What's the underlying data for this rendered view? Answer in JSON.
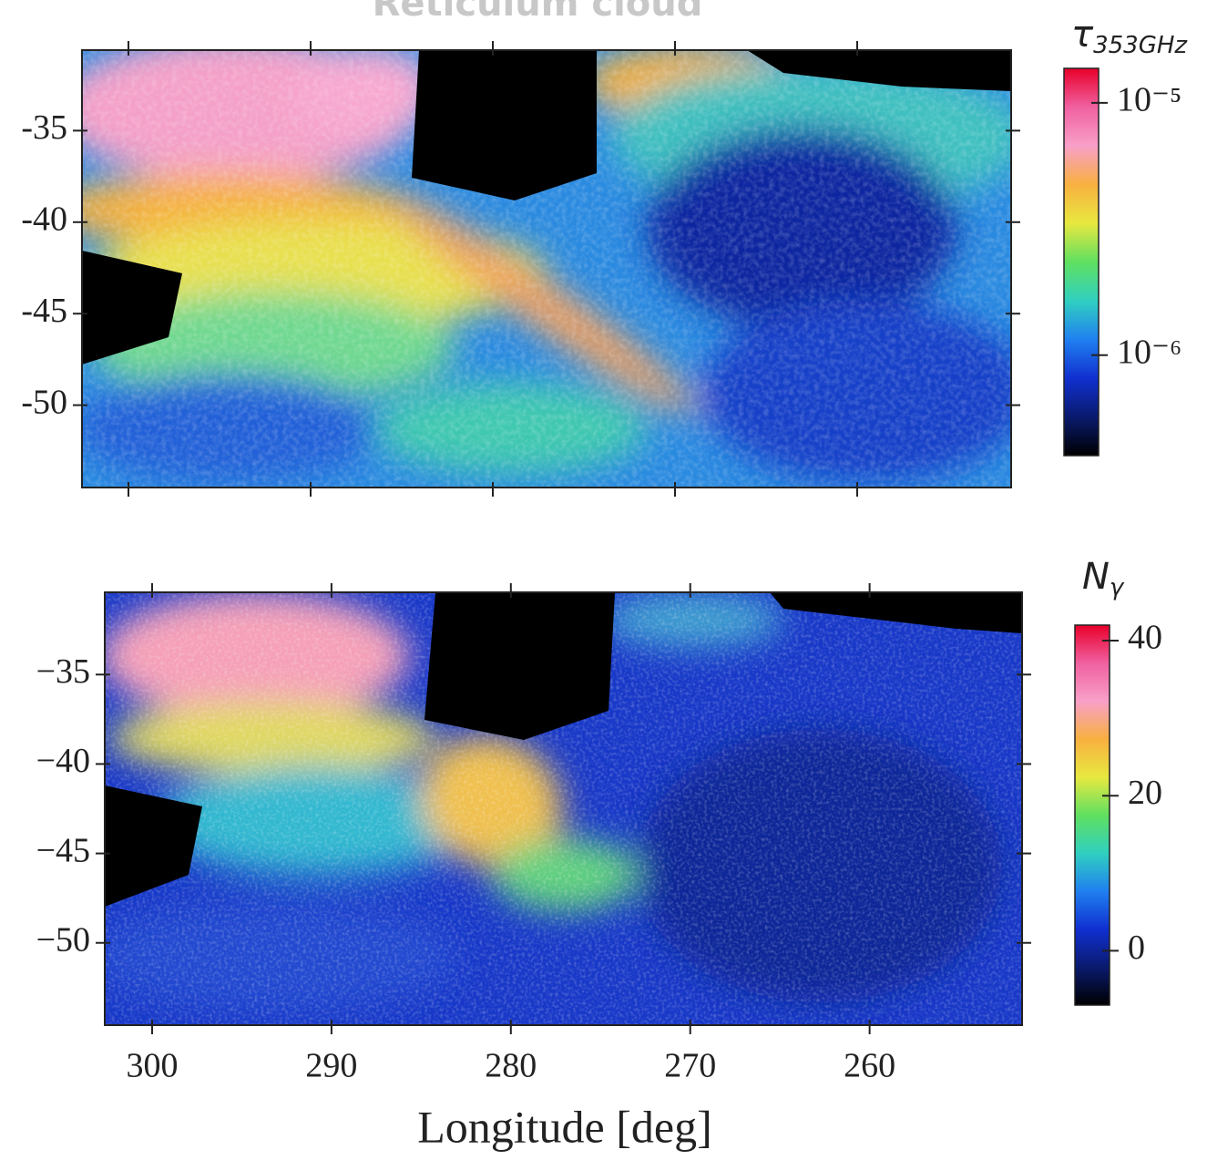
{
  "title": "Reticulum cloud",
  "chart_data": [
    {
      "type": "heatmap",
      "xlim": [
        302.55,
        251.55
      ],
      "ylim": [
        -54.5,
        -30.6
      ],
      "xticks": [
        300,
        290,
        280,
        270,
        260
      ],
      "show_xtick_labels": false,
      "yticks": [
        {
          "value": -35,
          "label": "-35"
        },
        {
          "value": -40,
          "label": "-40"
        },
        {
          "value": -45,
          "label": "-45"
        },
        {
          "value": -50,
          "label": "-50"
        }
      ],
      "colormap": [
        "#000000",
        "#0a1a6e",
        "#1030d0",
        "#2080f0",
        "#30d0c0",
        "#60e060",
        "#e8e840",
        "#f8b040",
        "#f8a0c8",
        "#f060a0",
        "#e8002a"
      ],
      "colorbar": {
        "label": "τ",
        "label_sub": "353GHz",
        "log": true,
        "lim": [
          4e-07,
          1.37e-05
        ],
        "ticks": [
          {
            "value": 1e-05,
            "label": "10⁻⁵"
          },
          {
            "value": 1e-06,
            "label": "10⁻⁶"
          }
        ]
      }
    },
    {
      "type": "heatmap",
      "xlim": [
        302.64,
        251.5
      ],
      "ylim": [
        -54.6,
        -30.4
      ],
      "xticks": [
        300,
        290,
        280,
        270,
        260
      ],
      "show_xtick_labels": true,
      "xlabel": "Longitude [deg]",
      "yticks": [
        {
          "value": -35,
          "label": "−35"
        },
        {
          "value": -40,
          "label": "−40"
        },
        {
          "value": -45,
          "label": "−45"
        },
        {
          "value": -50,
          "label": "−50"
        }
      ],
      "colormap": [
        "#000000",
        "#0a1a6e",
        "#1030d0",
        "#2080f0",
        "#30d0c0",
        "#60e060",
        "#e8e840",
        "#f8b040",
        "#f8a0c8",
        "#f060a0",
        "#e8002a"
      ],
      "colorbar": {
        "label": "N",
        "label_sub": "γ",
        "log": false,
        "lim": [
          -7,
          42
        ],
        "ticks": [
          0,
          20,
          40
        ]
      }
    }
  ]
}
